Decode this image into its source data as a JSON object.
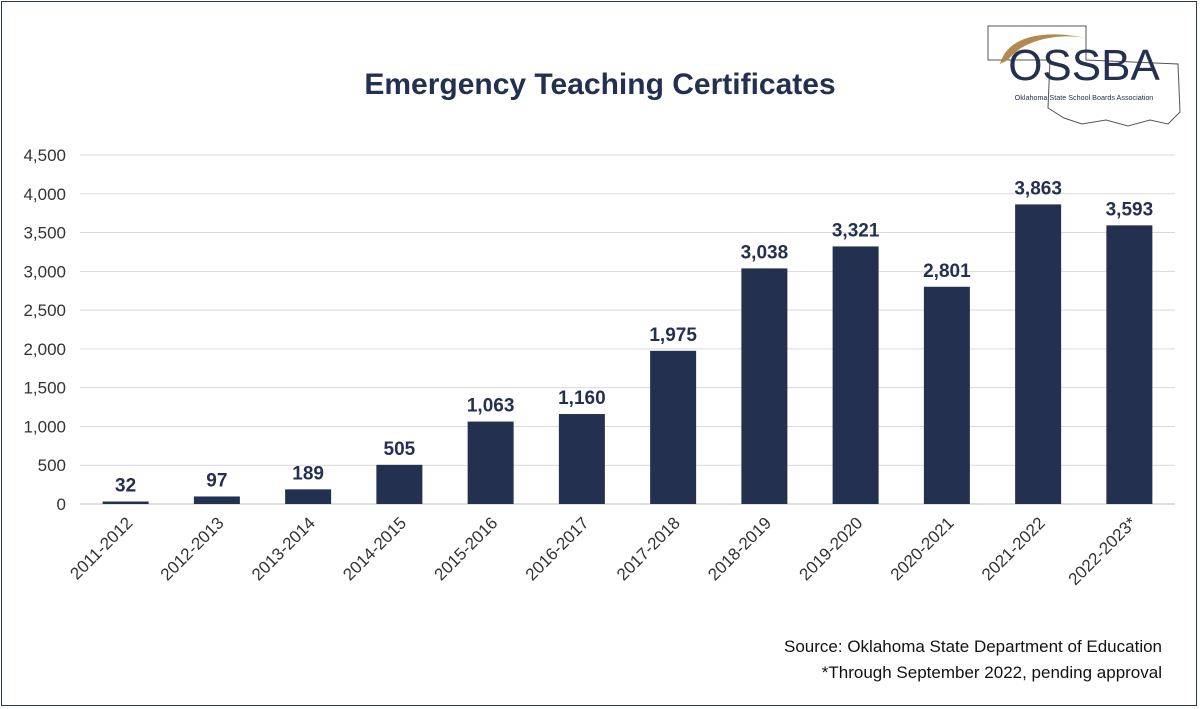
{
  "title": "Emergency Teaching Certificates",
  "logo": {
    "name": "OSSBA",
    "subtitle": "Oklahoma State School Boards Association"
  },
  "footnotes": {
    "source": "Source: Oklahoma State Department of Education",
    "note": "*Through September 2022, pending approval"
  },
  "colors": {
    "bar": "#24304f",
    "title": "#24304f",
    "axis_text": "#333333",
    "grid": "#d9d9d9",
    "logo_gold": "#b08a4f"
  },
  "chart_data": {
    "type": "bar",
    "title": "Emergency Teaching Certificates",
    "categories": [
      "2011-2012",
      "2012-2013",
      "2013-2014",
      "2014-2015",
      "2015-2016",
      "2016-2017",
      "2017-2018",
      "2018-2019",
      "2019-2020",
      "2020-2021",
      "2021-2022",
      "2022-2023*"
    ],
    "values": [
      32,
      97,
      189,
      505,
      1063,
      1160,
      1975,
      3038,
      3321,
      2801,
      3863,
      3593
    ],
    "data_labels": [
      "32",
      "97",
      "189",
      "505",
      "1,063",
      "1,160",
      "1,975",
      "3,038",
      "3,321",
      "2,801",
      "3,863",
      "3,593"
    ],
    "y_ticks": [
      0,
      500,
      1000,
      1500,
      2000,
      2500,
      3000,
      3500,
      4000,
      4500
    ],
    "y_tick_labels": [
      "0",
      "500",
      "1,000",
      "1,500",
      "2,000",
      "2,500",
      "3,000",
      "3,500",
      "4,000",
      "4,500"
    ],
    "ylim": [
      0,
      4500
    ],
    "xlabel": "",
    "ylabel": "",
    "grid": true,
    "legend": "none"
  }
}
